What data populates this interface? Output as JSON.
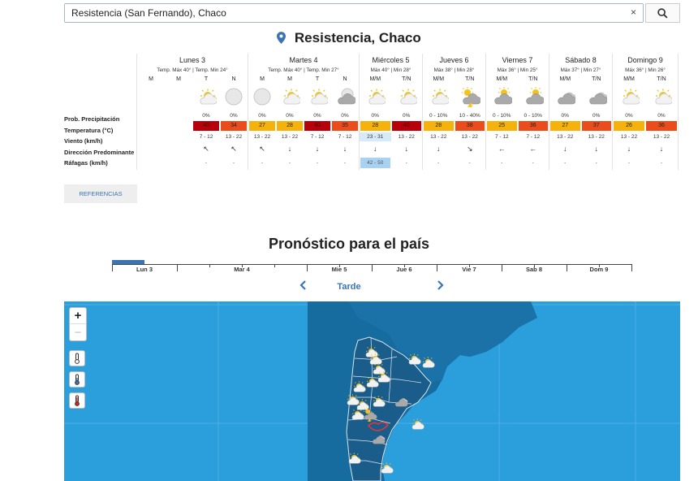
{
  "search": {
    "value": "Resistencia (San Fernando), Chaco",
    "clear_glyph": "×"
  },
  "location": {
    "title": "Resistencia, Chaco"
  },
  "row_labels": [
    "Prob. Precipitación",
    "Temperatura (°C)",
    "Viento (km/h)",
    "Dirección Predominante",
    "Ráfagas (km/h)"
  ],
  "days": [
    {
      "name": "Lunes 3",
      "temps": "Temp. Máx 40° | Temp. Min 24°",
      "slots": [
        {
          "label": "M",
          "icon": "none",
          "prob": "",
          "temp": "",
          "temp_color": "",
          "wind": "",
          "dir": "",
          "gust": ""
        },
        {
          "label": "M",
          "icon": "none",
          "prob": "",
          "temp": "",
          "temp_color": "",
          "wind": "",
          "dir": "",
          "gust": ""
        },
        {
          "label": "T",
          "icon": "sun-cloud",
          "prob": "0%",
          "temp": "40",
          "temp_color": "#b8000a",
          "wind": "7 - 12",
          "dir": "↖",
          "gust": "-"
        },
        {
          "label": "N",
          "icon": "moon",
          "prob": "0%",
          "temp": "34",
          "temp_color": "#ea4c1c",
          "wind": "13 - 22",
          "dir": "↖",
          "gust": "-"
        }
      ]
    },
    {
      "name": "Martes 4",
      "temps": "Temp. Máx 40° | Temp. Min 27°",
      "slots": [
        {
          "label": "M",
          "icon": "moon",
          "prob": "0%",
          "temp": "27",
          "temp_color": "#f6b20c",
          "wind": "13 - 22",
          "dir": "↖",
          "gust": "-"
        },
        {
          "label": "M",
          "icon": "sun-cloud",
          "prob": "0%",
          "temp": "28",
          "temp_color": "#f6b20c",
          "wind": "13 - 22",
          "dir": "↓",
          "gust": "-"
        },
        {
          "label": "T",
          "icon": "sun-cloud",
          "prob": "0%",
          "temp": "40",
          "temp_color": "#b8000a",
          "wind": "7 - 12",
          "dir": "↓",
          "gust": "-"
        },
        {
          "label": "N",
          "icon": "moon-cloud",
          "prob": "0%",
          "temp": "35",
          "temp_color": "#ea4c1c",
          "wind": "7 - 12",
          "dir": "↓",
          "gust": "-"
        }
      ]
    },
    {
      "name": "Miércoles 5",
      "temps": "Máx 40° | Min 28°",
      "slots": [
        {
          "label": "M/M",
          "icon": "sun-cloud",
          "prob": "0%",
          "temp": "28",
          "temp_color": "#f6b20c",
          "wind": "23 - 31",
          "wind_bg": "#d7eaf8",
          "dir": "↓",
          "gust": "42 - 50",
          "gust_bg": "#a9d2f2"
        },
        {
          "label": "T/N",
          "icon": "sun-cloud",
          "prob": "0%",
          "temp": "40",
          "temp_color": "#b8000a",
          "wind": "13 - 22",
          "dir": "↓",
          "gust": "-"
        }
      ]
    },
    {
      "name": "Jueves 6",
      "temps": "Máx 38° | Min 28°",
      "slots": [
        {
          "label": "M/M",
          "icon": "sun-cloud",
          "prob": "0 - 10%",
          "temp": "28",
          "temp_color": "#f6b20c",
          "wind": "13 - 22",
          "dir": "↓",
          "gust": "-"
        },
        {
          "label": "T/N",
          "icon": "storm",
          "prob": "10 - 40%",
          "temp": "38",
          "temp_color": "#ea4c1c",
          "wind": "13 - 22",
          "dir": "↘",
          "gust": "-"
        }
      ]
    },
    {
      "name": "Viernes 7",
      "temps": "Máx 36° | Min 25°",
      "slots": [
        {
          "label": "M/M",
          "icon": "cloud-sun",
          "prob": "0 - 10%",
          "temp": "25",
          "temp_color": "#f6b20c",
          "wind": "7 - 12",
          "dir": "←",
          "gust": "-"
        },
        {
          "label": "T/N",
          "icon": "cloud-sun",
          "prob": "0 - 10%",
          "temp": "36",
          "temp_color": "#ea4c1c",
          "wind": "7 - 12",
          "dir": "←",
          "gust": "-"
        }
      ]
    },
    {
      "name": "Sábado 8",
      "temps": "Máx 37° | Min 27°",
      "slots": [
        {
          "label": "M/M",
          "icon": "cloud",
          "prob": "0%",
          "temp": "27",
          "temp_color": "#f6b20c",
          "wind": "13 - 22",
          "dir": "↓",
          "gust": "-"
        },
        {
          "label": "T/N",
          "icon": "cloud",
          "prob": "0%",
          "temp": "37",
          "temp_color": "#ea4c1c",
          "wind": "13 - 22",
          "dir": "↓",
          "gust": "-"
        }
      ]
    },
    {
      "name": "Domingo 9",
      "temps": "Máx 36° | Min 26°",
      "slots": [
        {
          "label": "M/M",
          "icon": "sun-cloud",
          "prob": "0%",
          "temp": "26",
          "temp_color": "#f6b20c",
          "wind": "13 - 22",
          "dir": "↓",
          "gust": "-"
        },
        {
          "label": "T/N",
          "icon": "sun-cloud",
          "prob": "0%",
          "temp": "36",
          "temp_color": "#ea4c1c",
          "wind": "13 - 22",
          "dir": "↓",
          "gust": "-"
        }
      ]
    }
  ],
  "references_button": "REFERENCIAS",
  "country_section": {
    "title": "Pronóstico para el país"
  },
  "timeline": {
    "labels": [
      "Lun 3",
      "Mar 4",
      "Mie 5",
      "Jue 6",
      "Vie 7",
      "Sab 8",
      "Dom 9"
    ],
    "active": "Lun 3"
  },
  "period": {
    "label": "Tarde"
  },
  "map": {
    "zoom_in": "+",
    "zoom_out": "−",
    "layers": [
      "thermometer-icon",
      "thermometer-cold-icon",
      "thermometer-hot-icon"
    ]
  }
}
